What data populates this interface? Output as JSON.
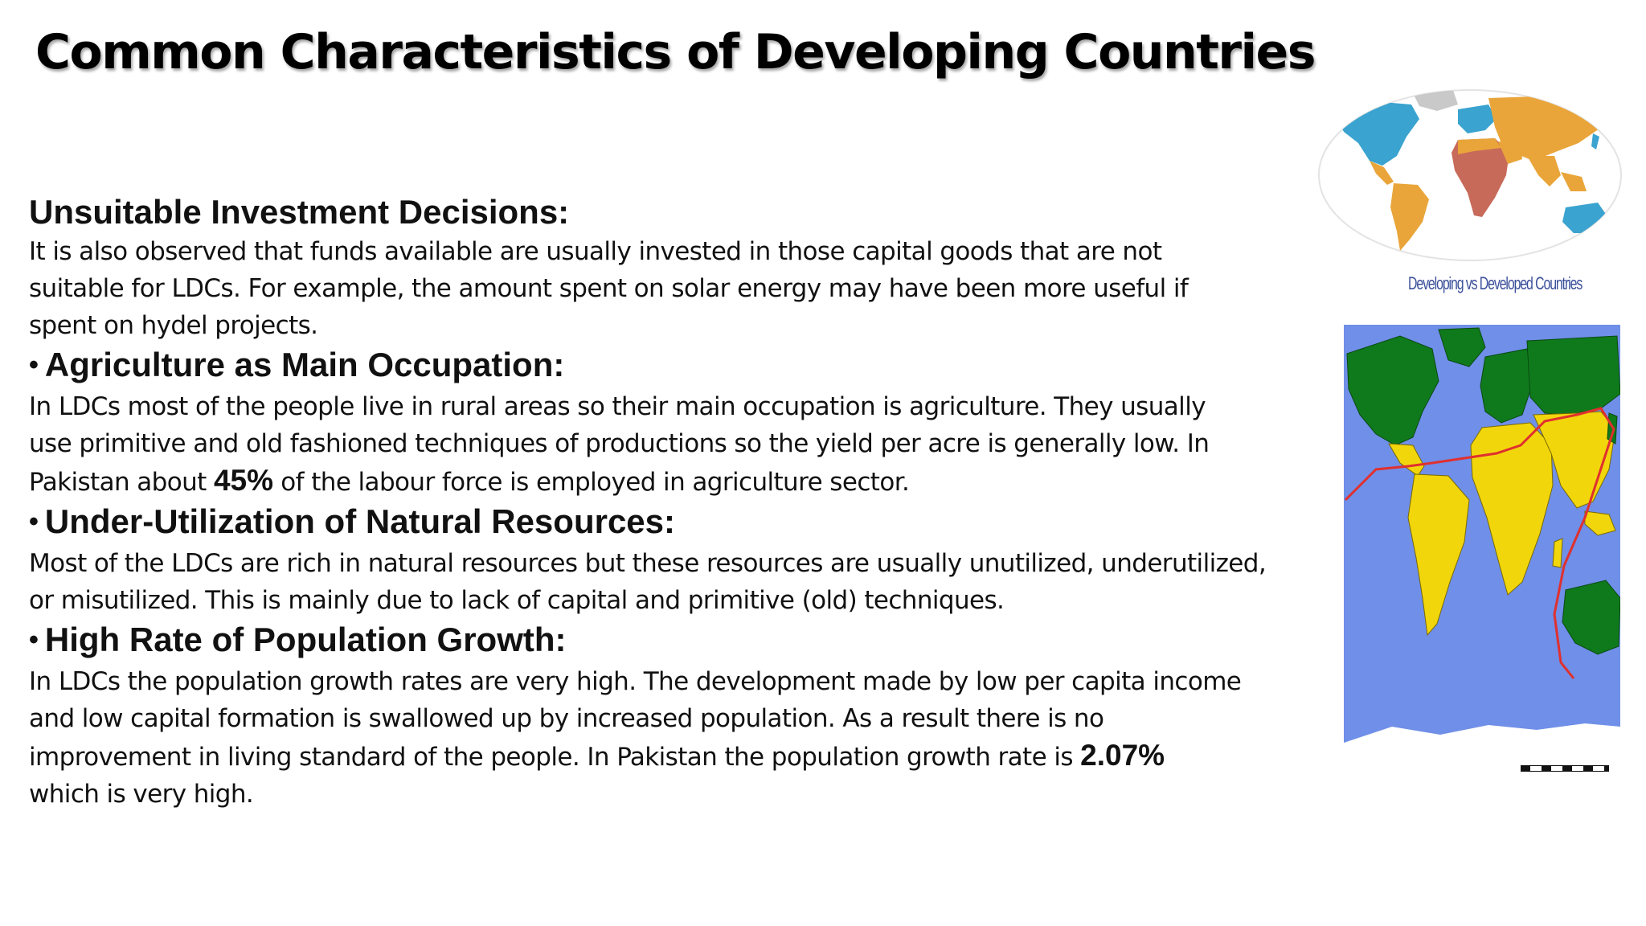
{
  "slide": {
    "title": "Common Characteristics of Developing Countries"
  },
  "sections": [
    {
      "bullet": "",
      "heading": "Unsuitable Investment Decisions:",
      "lines": [
        [
          "It is also observed that funds available are usually invested in those capital goods that are not"
        ],
        [
          "suitable for LDCs. For example, the amount spent on solar energy may have been more useful if"
        ],
        [
          "spent on hydel projects."
        ]
      ]
    },
    {
      "bullet": "•",
      "heading": "Agriculture as Main Occupation:",
      "lines": [
        [
          "In LDCs most of the people live in rural areas so their main occupation is agriculture. They usually"
        ],
        [
          "use primitive and old fashioned techniques of productions so the yield per acre is generally low. In"
        ],
        [
          "Pakistan about ",
          "45%",
          " of the labour force is employed in agriculture sector."
        ]
      ]
    },
    {
      "bullet": "•",
      "heading": "Under-Utilization of Natural Resources:",
      "lines": [
        [
          "Most of the LDCs are rich in natural resources but these resources are usually unutilized, underutilized,"
        ],
        [
          "or misutilized. This is mainly due to lack of capital and primitive (old) techniques."
        ]
      ]
    },
    {
      "bullet": "•",
      "heading": "High Rate of Population Growth:",
      "lines": [
        [
          "In LDCs the population growth rates are very high. The development made by low per capita income"
        ],
        [
          "and low capital formation is swallowed up by increased population. As a result there is no"
        ],
        [
          "improvement in living standard of the people. In Pakistan the population growth rate is ",
          "2.07%"
        ],
        [
          "which is very high."
        ]
      ]
    }
  ],
  "images": {
    "world_map_caption": "Developing vs Developed Countries",
    "world_map_icon": "world-map-developing-vs-developed",
    "peters_map_icon": "world-map-north-south-divide",
    "colors": {
      "ocean": "#6f8fe8",
      "developed": "#0f7a1c",
      "developing": "#f2d60c",
      "divide_line": "#e0302e",
      "oval_developed": "#3aa3cf",
      "oval_developing": "#e9a53a",
      "oval_least_developed": "#c86a5a"
    }
  }
}
